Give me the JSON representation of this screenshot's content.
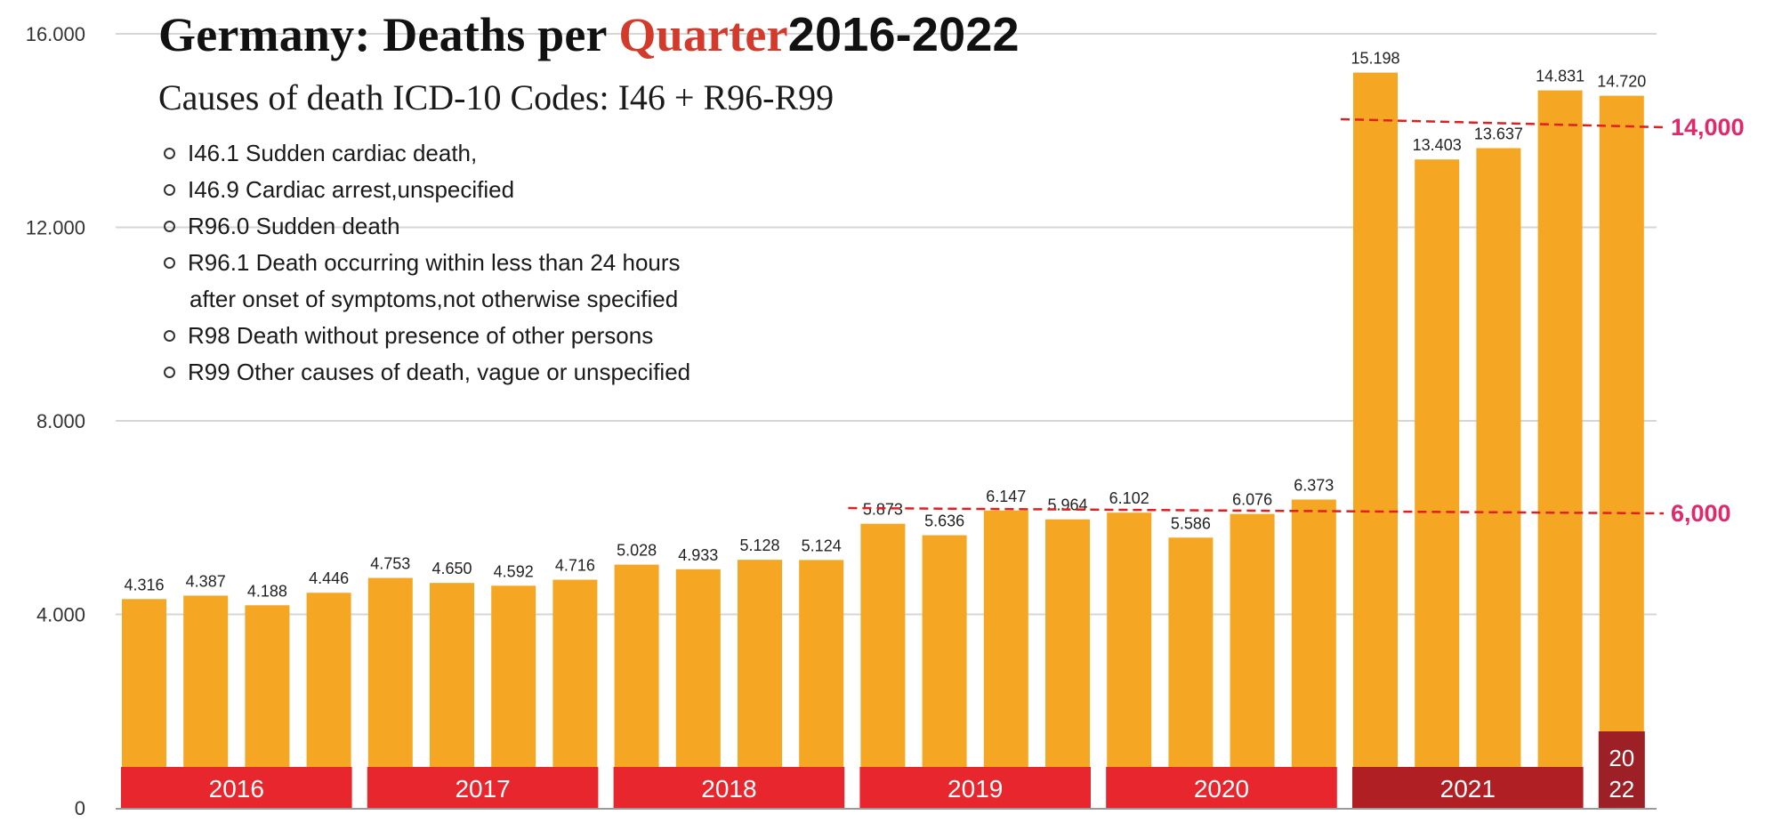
{
  "chart_data": {
    "type": "bar",
    "title": {
      "prefix": "Germany: Deaths per ",
      "accent": "Quarter",
      "suffix": "2016-2022"
    },
    "subtitle": "Causes of death ICD-10 Codes: I46 + R96-R99",
    "legend_items": [
      "I46.1 Sudden cardiac death,",
      "I46.9 Cardiac arrest,unspecified",
      "R96.0 Sudden death",
      "R96.1 Death occurring within less than 24 hours",
      "after onset of symptoms,not otherwise specified",
      "R98 Death without presence of other persons",
      "R99 Other causes of death, vague or unspecified"
    ],
    "ylim": [
      0,
      16000
    ],
    "yticks": [
      0,
      4000,
      8000,
      12000,
      16000
    ],
    "ytick_labels": [
      "0",
      "4.000",
      "8.000",
      "12.000",
      "16.000"
    ],
    "grid": true,
    "values": [
      4316,
      4387,
      4188,
      4446,
      4753,
      4650,
      4592,
      4716,
      5028,
      4933,
      5128,
      5124,
      5873,
      5636,
      6147,
      5964,
      6102,
      5586,
      6076,
      6373,
      15198,
      13403,
      13637,
      14831,
      14720
    ],
    "value_labels": [
      "4.316",
      "4.387",
      "4.188",
      "4.446",
      "4.753",
      "4.650",
      "4.592",
      "4.716",
      "5.028",
      "4.933",
      "5.128",
      "5.124",
      "5.873",
      "5.636",
      "6.147",
      "5.964",
      "6.102",
      "5.586",
      "6.076",
      "6.373",
      "15.198",
      "13.403",
      "13.637",
      "14.831",
      "14.720"
    ],
    "years": [
      {
        "label": "2016",
        "start": 0,
        "count": 4
      },
      {
        "label": "2017",
        "start": 4,
        "count": 4
      },
      {
        "label": "2018",
        "start": 8,
        "count": 4
      },
      {
        "label": "2019",
        "start": 12,
        "count": 4
      },
      {
        "label": "2020",
        "start": 16,
        "count": 4
      },
      {
        "label": "2021",
        "start": 20,
        "count": 4
      },
      {
        "label_lines": [
          "20",
          "22"
        ],
        "start": 24,
        "count": 1
      }
    ],
    "reference_lines": [
      {
        "value": 14000,
        "label": "14,000",
        "from_index": 20
      },
      {
        "value": 6000,
        "label": "6,000",
        "from_index": 12
      }
    ]
  },
  "colors": {
    "bar": "#f5a623",
    "year_band": "#e8262d",
    "year_band_2021": "#b01f24",
    "year_band_2022": "#9c2026",
    "reference_line": "#e02020",
    "reference_label": "#e0286a",
    "grid": "#d6d6d6",
    "axis": "#9a9a9a"
  }
}
